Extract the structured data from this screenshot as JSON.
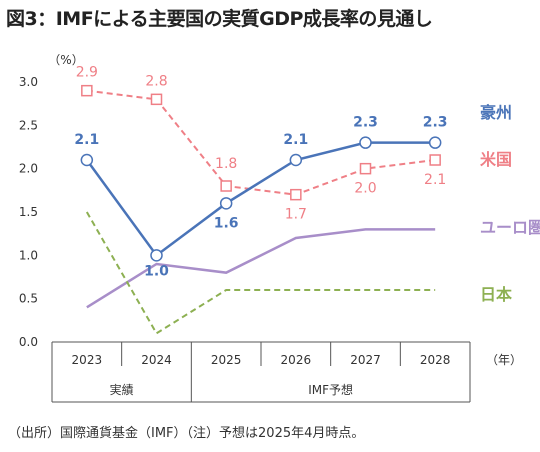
{
  "title": "図3：IMFによる主要国の実質GDP成長率の見通し",
  "footer": "（出所）国際通貨基金（IMF）（注）予想は2025年4月時点。",
  "chart_data": {
    "type": "line",
    "title": "図3：IMFによる主要国の実質GDP成長率の見通し",
    "y_unit": "（%）",
    "x_unit": "（年）",
    "ylim": [
      0.0,
      3.0
    ],
    "yticks": [
      "0.0",
      "0.5",
      "1.0",
      "1.5",
      "2.0",
      "2.5",
      "3.0"
    ],
    "categories": [
      "2023",
      "2024",
      "2025",
      "2026",
      "2027",
      "2028"
    ],
    "groups": [
      {
        "label": "実績",
        "span": [
          0,
          1
        ]
      },
      {
        "label": "IMF予想",
        "span": [
          2,
          5
        ]
      }
    ],
    "series": [
      {
        "name": "豪州",
        "color": "#4a74b8",
        "style": "solid",
        "marker": "circle",
        "values": [
          2.1,
          1.0,
          1.6,
          2.1,
          2.3,
          2.3
        ],
        "labels": [
          "2.1",
          "1.0",
          "1.6",
          "2.1",
          "2.3",
          "2.3"
        ]
      },
      {
        "name": "米国",
        "color": "#ef7f86",
        "style": "dashed",
        "marker": "square",
        "values": [
          2.9,
          2.8,
          1.8,
          1.7,
          2.0,
          2.1
        ],
        "labels": [
          "2.9",
          "2.8",
          "1.8",
          "1.7",
          "2.0",
          "2.1"
        ]
      },
      {
        "name": "ユーロ圏",
        "color": "#a88ec9",
        "style": "solid",
        "marker": "none",
        "values": [
          0.4,
          0.9,
          0.8,
          1.2,
          1.3,
          1.3
        ]
      },
      {
        "name": "日本",
        "color": "#8db052",
        "style": "dashed",
        "marker": "none",
        "values": [
          1.5,
          0.1,
          0.6,
          0.6,
          0.6,
          0.6
        ]
      }
    ]
  }
}
